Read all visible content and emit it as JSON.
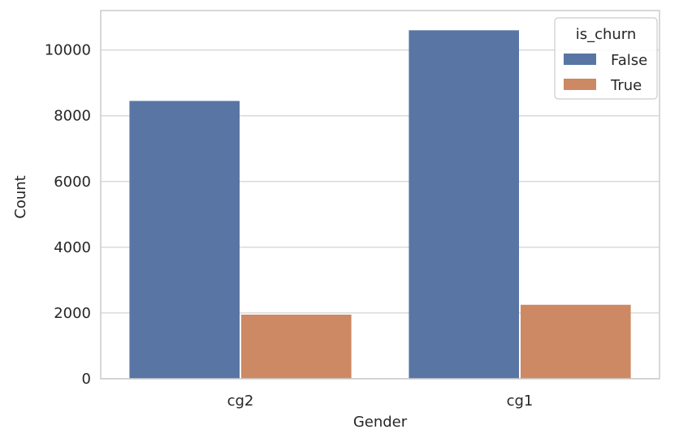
{
  "chart_data": {
    "type": "bar",
    "categories": [
      "cg2",
      "cg1"
    ],
    "series": [
      {
        "name": "False",
        "values": [
          8450,
          10600
        ],
        "color": "#5875a4"
      },
      {
        "name": "True",
        "values": [
          1950,
          2250
        ],
        "color": "#cc8963"
      }
    ],
    "title": "",
    "xlabel": "Gender",
    "ylabel": "Count",
    "ylim": [
      0,
      11200
    ],
    "yticks": [
      "0",
      "2000",
      "4000",
      "6000",
      "8000",
      "10000"
    ],
    "grid": "horizontal",
    "legend": {
      "title": "is_churn",
      "placement": "top-right"
    },
    "colors": {
      "grid": "#d9d9d9",
      "spine": "#cccccc",
      "text": "#262626"
    }
  }
}
